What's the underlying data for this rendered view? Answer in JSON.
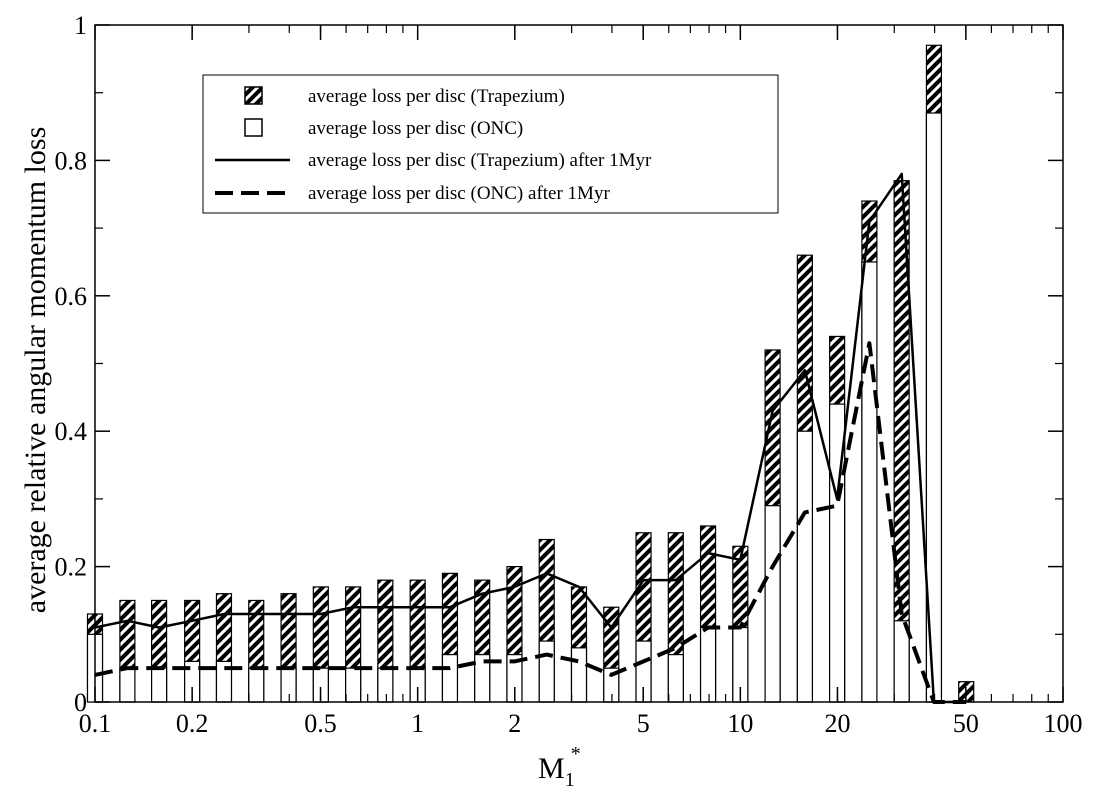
{
  "chart_data": {
    "type": "bar",
    "title": "",
    "xlabel": "M",
    "xlabel_sub": "1",
    "xlabel_sup": "*",
    "ylabel": "average  relative angular momentum loss",
    "x_scale": "log",
    "xlim": [
      0.1,
      100
    ],
    "ylim": [
      0,
      1
    ],
    "x_ticks": [
      0.1,
      0.2,
      0.5,
      1,
      2,
      5,
      10,
      20,
      50,
      100
    ],
    "x_tick_labels": [
      "0.1",
      "0.2",
      "0.5",
      "1",
      "2",
      "5",
      "10",
      "20",
      "50",
      "100"
    ],
    "y_ticks": [
      0,
      0.2,
      0.4,
      0.6,
      0.8,
      1
    ],
    "y_tick_labels": [
      "0",
      "0.2",
      "0.4",
      "0.6",
      "0.8",
      "1"
    ],
    "grid": false,
    "legend_position": "top-left",
    "bin_centers": [
      0.1,
      0.126,
      0.158,
      0.2,
      0.251,
      0.316,
      0.398,
      0.501,
      0.631,
      0.794,
      1.0,
      1.259,
      1.585,
      1.995,
      2.512,
      3.162,
      3.981,
      5.012,
      6.31,
      7.943,
      10.0,
      12.59,
      15.85,
      19.95,
      25.12,
      31.62,
      39.81,
      50.12
    ],
    "series": [
      {
        "name": "average loss per disc (Trapezium)",
        "style": "hatched-bar",
        "values": [
          0.13,
          0.15,
          0.15,
          0.15,
          0.16,
          0.15,
          0.16,
          0.17,
          0.17,
          0.18,
          0.18,
          0.19,
          0.18,
          0.2,
          0.24,
          0.17,
          0.14,
          0.25,
          0.25,
          0.26,
          0.23,
          0.52,
          0.66,
          0.54,
          0.74,
          0.77,
          0.97,
          0.03
        ]
      },
      {
        "name": "average loss per disc (ONC)",
        "style": "open-bar",
        "values": [
          0.1,
          0.05,
          0.05,
          0.06,
          0.06,
          0.05,
          0.05,
          0.05,
          0.05,
          0.05,
          0.05,
          0.07,
          0.07,
          0.07,
          0.09,
          0.08,
          0.05,
          0.09,
          0.07,
          0.11,
          0.11,
          0.29,
          0.4,
          0.44,
          0.65,
          0.12,
          0.87,
          0.0
        ]
      },
      {
        "name": "average loss per disc (Trapezium) after 1Myr",
        "style": "solid-line",
        "values": [
          0.11,
          0.12,
          0.11,
          0.12,
          0.13,
          0.13,
          0.13,
          0.13,
          0.14,
          0.14,
          0.14,
          0.14,
          0.16,
          0.17,
          0.19,
          0.17,
          0.11,
          0.18,
          0.18,
          0.22,
          0.21,
          0.43,
          0.49,
          0.3,
          0.71,
          0.78,
          0.0,
          0.0
        ]
      },
      {
        "name": "average loss per disc (ONC) after 1Myr",
        "style": "dashed-line",
        "values": [
          0.04,
          0.05,
          0.05,
          0.05,
          0.05,
          0.05,
          0.05,
          0.05,
          0.05,
          0.05,
          0.05,
          0.05,
          0.06,
          0.06,
          0.07,
          0.06,
          0.04,
          0.06,
          0.08,
          0.11,
          0.11,
          0.2,
          0.28,
          0.29,
          0.53,
          0.13,
          0.0,
          0.0
        ]
      }
    ],
    "colors": {
      "ink": "#000000",
      "background": "#ffffff"
    }
  }
}
